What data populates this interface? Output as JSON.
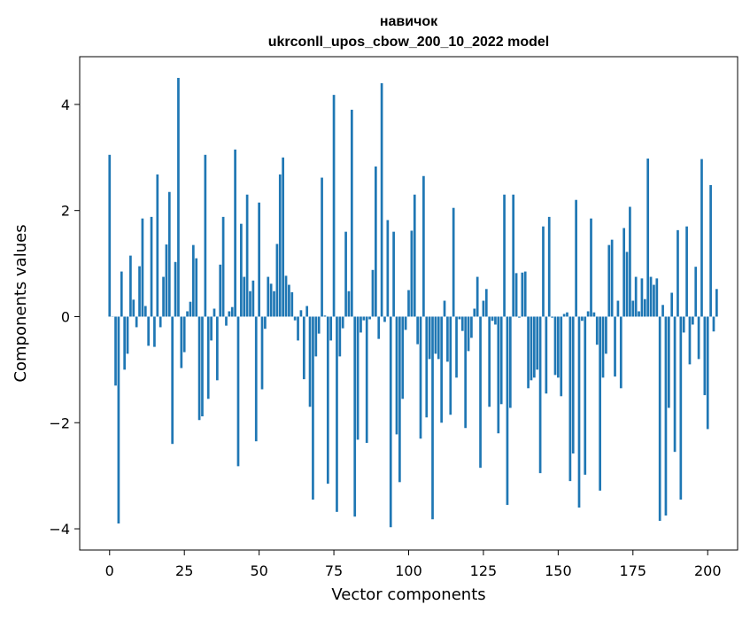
{
  "chart_data": {
    "type": "bar",
    "title": "навичок",
    "subtitle": "ukrconll_upos_cbow_200_10_2022 model",
    "xlabel": "Vector components",
    "ylabel": "Components values",
    "xlim": [
      -10,
      210
    ],
    "ylim": [
      -4.4,
      4.9
    ],
    "xticks": [
      0,
      25,
      50,
      75,
      100,
      125,
      150,
      175,
      200
    ],
    "yticks": [
      -4,
      -2,
      0,
      2,
      4
    ],
    "ytick_labels": [
      "−4",
      "−2",
      "0",
      "2",
      "4"
    ],
    "grid": false,
    "legend": "none",
    "color": "#1f77b4",
    "x_start": 0,
    "values": [
      3.05,
      0.0,
      -1.3,
      -3.9,
      0.85,
      -1.0,
      -0.7,
      1.15,
      0.32,
      -0.2,
      0.95,
      1.85,
      0.2,
      -0.55,
      1.88,
      -0.57,
      2.68,
      -0.2,
      0.75,
      1.36,
      2.35,
      -2.4,
      1.03,
      4.5,
      -0.97,
      -0.67,
      0.1,
      0.28,
      1.35,
      1.1,
      -1.95,
      -1.88,
      3.05,
      -1.55,
      -0.45,
      0.15,
      -1.2,
      0.98,
      1.88,
      -0.17,
      0.1,
      0.18,
      3.15,
      -2.82,
      1.75,
      0.75,
      2.3,
      0.48,
      0.68,
      -2.35,
      2.15,
      -1.37,
      -0.23,
      0.75,
      0.62,
      0.48,
      1.37,
      2.68,
      3.0,
      0.77,
      0.6,
      0.46,
      -0.07,
      -0.45,
      0.12,
      -1.18,
      0.2,
      -1.7,
      -3.45,
      -0.75,
      -0.32,
      2.62,
      0.02,
      -3.15,
      -0.45,
      4.18,
      -3.68,
      -0.75,
      -0.22,
      1.6,
      0.48,
      3.9,
      -3.77,
      -2.32,
      -0.3,
      -0.07,
      -2.38,
      -0.05,
      0.88,
      2.83,
      -0.42,
      4.4,
      -0.1,
      1.82,
      -3.97,
      1.6,
      -2.22,
      -3.12,
      -1.55,
      -0.25,
      0.5,
      1.62,
      2.3,
      -0.52,
      -2.3,
      2.65,
      -1.9,
      -0.8,
      -3.82,
      -0.7,
      -0.8,
      -2.0,
      0.3,
      -0.85,
      -1.85,
      2.05,
      -1.15,
      -0.05,
      -0.27,
      -2.1,
      -0.65,
      -0.4,
      0.15,
      0.75,
      -2.85,
      0.3,
      0.52,
      -1.7,
      -0.08,
      -0.15,
      -2.2,
      -1.65,
      2.3,
      -3.55,
      -1.72,
      2.3,
      0.82,
      -0.02,
      0.83,
      0.85,
      -1.35,
      -1.2,
      -1.15,
      -1.0,
      -2.95,
      1.7,
      -1.45,
      1.88,
      -0.02,
      -1.1,
      -1.15,
      -1.5,
      0.05,
      0.08,
      -3.1,
      -2.58,
      2.2,
      -3.6,
      -0.08,
      -2.98,
      0.1,
      1.85,
      0.08,
      -0.53,
      -3.28,
      -1.15,
      -0.7,
      1.35,
      1.45,
      -1.13,
      0.3,
      -1.35,
      1.67,
      1.22,
      2.07,
      0.3,
      0.75,
      0.1,
      0.72,
      0.33,
      2.98,
      0.75,
      0.6,
      0.72,
      -3.85,
      0.22,
      -3.75,
      -1.72,
      0.45,
      -2.55,
      1.63,
      -3.45,
      -0.3,
      1.7,
      -0.9,
      -0.15,
      0.94,
      -0.8,
      2.97,
      -1.48,
      -2.12,
      2.48,
      -0.28,
      0.52
    ]
  }
}
